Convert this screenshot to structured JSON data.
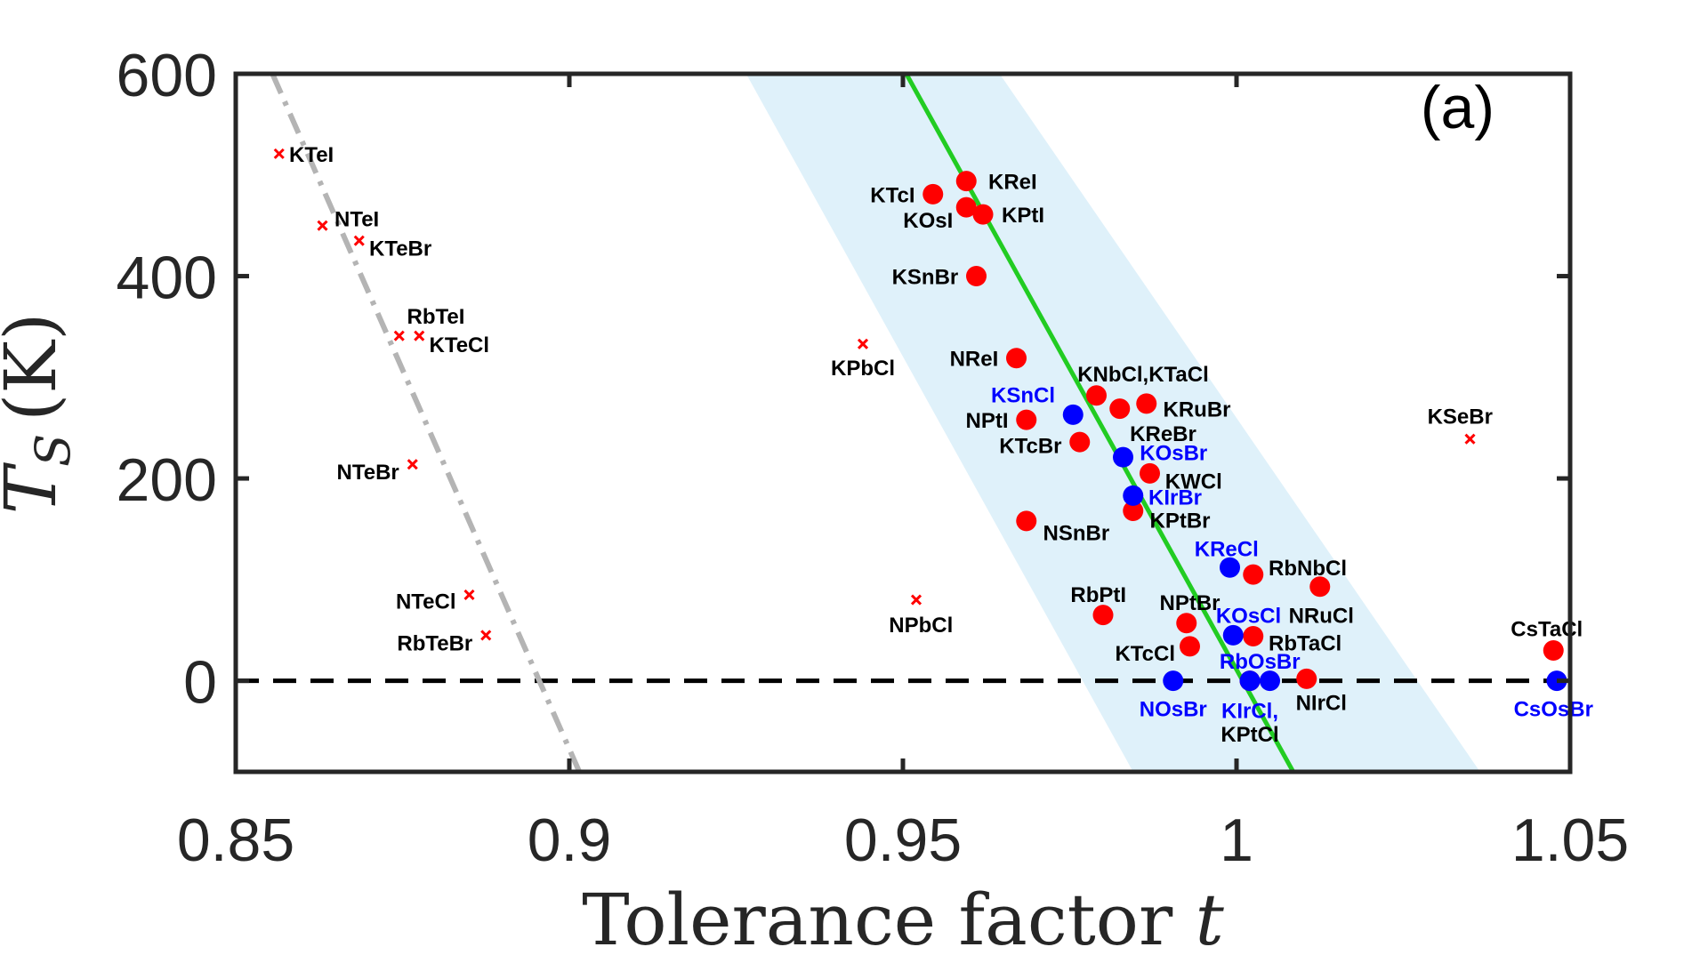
{
  "chart_data": {
    "type": "scatter",
    "xlabel": "Tolerance factor t",
    "ylabel": "T_S (K)",
    "ylabel_main": "T",
    "ylabel_sub": "S",
    "ylabel_unit": "(K)",
    "xlabel_text": "Tolerance factor ",
    "xlabel_var": "t",
    "panel_label": "(a)",
    "xlim": [
      0.85,
      1.05
    ],
    "ylim": [
      -90,
      600
    ],
    "xticks": [
      0.85,
      0.9,
      0.95,
      1.0,
      1.05
    ],
    "xtick_labels": [
      "0.85",
      "0.9",
      "0.95",
      "1",
      "1.05"
    ],
    "yticks": [
      0,
      200,
      400,
      600
    ],
    "ytick_labels": [
      "0",
      "200",
      "400",
      "600"
    ],
    "grid": false,
    "colors": {
      "red": "#ff0000",
      "blue": "#0000ff",
      "green_fit": "#22cc22",
      "band": "#dff1fa",
      "gray_fit": "#b4b4b4",
      "zero_line": "#000000",
      "axis": "#262626"
    },
    "zero_line_y": 0,
    "green_fit_line": [
      [
        0.9505,
        600
      ],
      [
        1.0085,
        -90
      ]
    ],
    "gray_fit_line": [
      [
        0.8555,
        600
      ],
      [
        0.9015,
        -90
      ]
    ],
    "band": [
      [
        0.9265,
        600
      ],
      [
        0.9645,
        600
      ],
      [
        1.0365,
        -90
      ],
      [
        0.9845,
        -90
      ]
    ],
    "series": [
      {
        "marker": "x",
        "color": "red",
        "points": [
          {
            "label": "KTeI",
            "x": 0.8565,
            "y": 521
          },
          {
            "label": "NTeI",
            "x": 0.863,
            "y": 450
          },
          {
            "label": "KTeBr",
            "x": 0.8685,
            "y": 435
          },
          {
            "label": "RbTeI",
            "x": 0.8745,
            "y": 341
          },
          {
            "label": "KTeCl",
            "x": 0.8775,
            "y": 341
          },
          {
            "label": "NTeBr",
            "x": 0.8765,
            "y": 214
          },
          {
            "label": "NTeCl",
            "x": 0.885,
            "y": 85
          },
          {
            "label": "RbTeBr",
            "x": 0.8875,
            "y": 45
          },
          {
            "label": "KPbCl",
            "x": 0.944,
            "y": 333
          },
          {
            "label": "NPbCl",
            "x": 0.952,
            "y": 80
          },
          {
            "label": "KSeBr",
            "x": 1.035,
            "y": 239
          }
        ]
      },
      {
        "marker": "o",
        "color": "red",
        "points": [
          {
            "label": "KReI",
            "x": 0.9595,
            "y": 494
          },
          {
            "label": "KTcI",
            "x": 0.9545,
            "y": 481
          },
          {
            "label": "KOsI",
            "x": 0.9595,
            "y": 468
          },
          {
            "label": "KPtI",
            "x": 0.962,
            "y": 461
          },
          {
            "label": "KSnBr",
            "x": 0.961,
            "y": 400
          },
          {
            "label": "NReI",
            "x": 0.967,
            "y": 319
          },
          {
            "label": "KNbCl,KTaCl",
            "x": 0.979,
            "y": 282
          },
          {
            "label": "",
            "x": 0.9825,
            "y": 269
          },
          {
            "label": "KRuBr",
            "x": 0.9865,
            "y": 274
          },
          {
            "label": "NPtI",
            "x": 0.9685,
            "y": 258
          },
          {
            "label": "KTcBr",
            "x": 0.9765,
            "y": 236
          },
          {
            "label": "KWCl",
            "x": 0.987,
            "y": 205
          },
          {
            "label": "KPtBr",
            "x": 0.9845,
            "y": 168
          },
          {
            "label": "NSnBr",
            "x": 0.9685,
            "y": 158
          },
          {
            "label": "RbNbCl",
            "x": 1.0025,
            "y": 105
          },
          {
            "label": "NRuCl",
            "x": 1.0125,
            "y": 93
          },
          {
            "label": "RbPtI",
            "x": 0.98,
            "y": 65
          },
          {
            "label": "NPtBr",
            "x": 0.9925,
            "y": 57
          },
          {
            "label": "RbTaCl",
            "x": 1.0025,
            "y": 44
          },
          {
            "label": "KTcCl",
            "x": 0.993,
            "y": 34
          },
          {
            "label": "NIrCl",
            "x": 1.0105,
            "y": 2
          },
          {
            "label": "KIrCl,",
            "x": 1.002,
            "y": 0
          },
          {
            "label": "CsTaCl",
            "x": 1.0475,
            "y": 30
          }
        ]
      },
      {
        "marker": "o",
        "color": "blue",
        "points": [
          {
            "label": "KSnCl",
            "x": 0.9755,
            "y": 263
          },
          {
            "label": "KOsBr",
            "x": 0.983,
            "y": 221
          },
          {
            "label": "KIrBr",
            "x": 0.9845,
            "y": 183
          },
          {
            "label": "KReCl",
            "x": 0.999,
            "y": 112
          },
          {
            "label": "KOsCl",
            "x": 0.9995,
            "y": 45
          },
          {
            "label": "RbOsBr",
            "x": 1.002,
            "y": 0
          },
          {
            "label": "",
            "x": 1.005,
            "y": 0
          },
          {
            "label": "NOsBr",
            "x": 0.9905,
            "y": 0
          },
          {
            "label": "CsOsBr",
            "x": 1.048,
            "y": 0
          }
        ]
      }
    ],
    "annotations": [
      {
        "text": "KTeI",
        "color": "black",
        "x": 0.858,
        "y": 521,
        "anchor": "start"
      },
      {
        "text": "NTeI",
        "color": "black",
        "x": 0.8648,
        "y": 457,
        "anchor": "start"
      },
      {
        "text": "KTeBr",
        "color": "black",
        "x": 0.87,
        "y": 428,
        "anchor": "start"
      },
      {
        "text": "RbTeI",
        "color": "black",
        "x": 0.88,
        "y": 361,
        "anchor": "middle"
      },
      {
        "text": "KTeCl",
        "color": "black",
        "x": 0.879,
        "y": 333,
        "anchor": "start"
      },
      {
        "text": "NTeBr",
        "color": "black",
        "x": 0.8745,
        "y": 207,
        "anchor": "end"
      },
      {
        "text": "NTeCl",
        "color": "black",
        "x": 0.883,
        "y": 79,
        "anchor": "end"
      },
      {
        "text": "RbTeBr",
        "color": "black",
        "x": 0.8855,
        "y": 38,
        "anchor": "end"
      },
      {
        "text": "KPbCl",
        "color": "black",
        "x": 0.944,
        "y": 310,
        "anchor": "middle"
      },
      {
        "text": "NPbCl",
        "color": "black",
        "x": 0.9527,
        "y": 56,
        "anchor": "middle"
      },
      {
        "text": "KSeBr",
        "color": "black",
        "x": 1.0335,
        "y": 262,
        "anchor": "middle"
      },
      {
        "text": "KReI",
        "color": "black",
        "x": 0.9628,
        "y": 494,
        "anchor": "start"
      },
      {
        "text": "KTcI",
        "color": "black",
        "x": 0.9518,
        "y": 481,
        "anchor": "end"
      },
      {
        "text": "KOsI",
        "color": "black",
        "x": 0.9575,
        "y": 456,
        "anchor": "end"
      },
      {
        "text": "KPtI",
        "color": "black",
        "x": 0.9648,
        "y": 461,
        "anchor": "start"
      },
      {
        "text": "KSnBr",
        "color": "black",
        "x": 0.9583,
        "y": 400,
        "anchor": "end"
      },
      {
        "text": "NReI",
        "color": "black",
        "x": 0.9643,
        "y": 319,
        "anchor": "end"
      },
      {
        "text": "KNbCl,KTaCl",
        "color": "black",
        "x": 0.986,
        "y": 304,
        "anchor": "middle"
      },
      {
        "text": "KRuBr",
        "color": "black",
        "x": 0.989,
        "y": 269,
        "anchor": "start"
      },
      {
        "text": "KReBr",
        "color": "black",
        "x": 0.989,
        "y": 245,
        "anchor": "middle"
      },
      {
        "text": "NPtI",
        "color": "black",
        "x": 0.9658,
        "y": 258,
        "anchor": "end"
      },
      {
        "text": "KTcBr",
        "color": "black",
        "x": 0.9738,
        "y": 233,
        "anchor": "end"
      },
      {
        "text": "KWCl",
        "color": "black",
        "x": 0.9893,
        "y": 198,
        "anchor": "start"
      },
      {
        "text": "KPtBr",
        "color": "black",
        "x": 0.987,
        "y": 159,
        "anchor": "start"
      },
      {
        "text": "NSnBr",
        "color": "black",
        "x": 0.971,
        "y": 147,
        "anchor": "start"
      },
      {
        "text": "RbNbCl",
        "color": "black",
        "x": 1.0048,
        "y": 112,
        "anchor": "start"
      },
      {
        "text": "NRuCl",
        "color": "black",
        "x": 1.0127,
        "y": 65,
        "anchor": "middle"
      },
      {
        "text": "RbPtI",
        "color": "black",
        "x": 0.9793,
        "y": 86,
        "anchor": "middle"
      },
      {
        "text": "NPtBr",
        "color": "black",
        "x": 0.993,
        "y": 78,
        "anchor": "middle"
      },
      {
        "text": "RbTaCl",
        "color": "black",
        "x": 1.0048,
        "y": 38,
        "anchor": "start"
      },
      {
        "text": "KTcCl",
        "color": "black",
        "x": 0.9908,
        "y": 28,
        "anchor": "end"
      },
      {
        "text": "NIrCl",
        "color": "black",
        "x": 1.0127,
        "y": -21,
        "anchor": "middle"
      },
      {
        "text": "KIrCl,",
        "color": "blue",
        "x": 1.002,
        "y": -29,
        "anchor": "middle"
      },
      {
        "text": "KPtCl",
        "color": "black",
        "x": 1.002,
        "y": -52,
        "anchor": "middle"
      },
      {
        "text": "CsTaCl",
        "color": "black",
        "x": 1.0465,
        "y": 52,
        "anchor": "middle"
      },
      {
        "text": "KSnCl",
        "color": "blue",
        "x": 0.9728,
        "y": 283,
        "anchor": "end"
      },
      {
        "text": "KOsBr",
        "color": "blue",
        "x": 0.9855,
        "y": 226,
        "anchor": "start"
      },
      {
        "text": "KIrBr",
        "color": "blue",
        "x": 0.9868,
        "y": 182,
        "anchor": "start"
      },
      {
        "text": "KReCl",
        "color": "blue",
        "x": 0.9985,
        "y": 131,
        "anchor": "middle"
      },
      {
        "text": "KOsCl",
        "color": "blue",
        "x": 1.0018,
        "y": 65,
        "anchor": "middle"
      },
      {
        "text": "RbOsBr",
        "color": "blue",
        "x": 1.0035,
        "y": 20,
        "anchor": "middle"
      },
      {
        "text": "NOsBr",
        "color": "blue",
        "x": 0.9905,
        "y": -27,
        "anchor": "middle"
      },
      {
        "text": "CsOsBr",
        "color": "blue",
        "x": 1.0475,
        "y": -27,
        "anchor": "middle"
      }
    ]
  }
}
